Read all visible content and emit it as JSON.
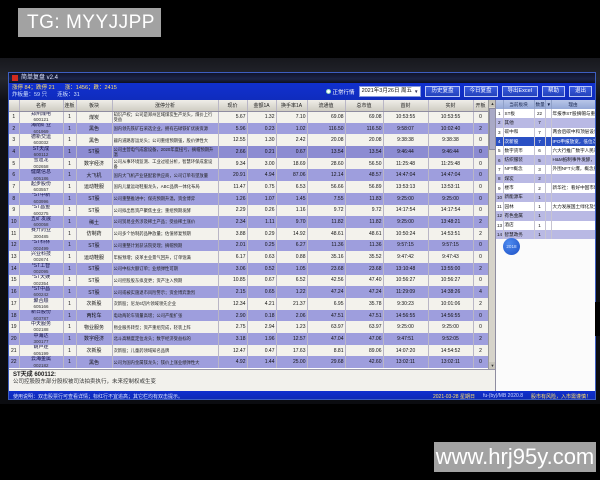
{
  "watermarks": {
    "top": "TG: MYYJJPP",
    "bottom": "www.hrj95y.com"
  },
  "window": {
    "title": "简单复盘 v2.4",
    "stats": {
      "line1_left": "涨停 84；跌停 21",
      "line1_right": "涨：1456；跌：2415",
      "line2_left": "炸板量：59 只",
      "line2_right": "连板：31"
    },
    "toolbar": {
      "mode_label": "正常行情",
      "date_value": "2021年3月26日 周五",
      "dropdown_glyph": "▼",
      "buttons": [
        "历史复盘",
        "今日复盘",
        "导出Excel",
        "帮助",
        "退出"
      ]
    }
  },
  "table": {
    "columns": [
      "",
      "名称",
      "连板",
      "板块",
      "涨停分析",
      "现价",
      "金额1A",
      "换手率1A",
      "流通值",
      "总市值",
      "首封",
      "实封",
      "开板"
    ],
    "selected_row": 4,
    "rows": [
      {
        "n": "1",
        "name": "郑州煤电",
        "code": "600121",
        "lb": "1",
        "sector": "煤炭",
        "an": "知识产权；公司是郑州区域煤炭生产龙头，煤价上行受益",
        "p": "5.67",
        "a": "1.32",
        "t": "7.10",
        "f": "69.08",
        "m": "69.08",
        "s1": "10:53:55",
        "s2": "10:53:55",
        "k": "0"
      },
      {
        "n": "2",
        "name": "海南矿业",
        "code": "601969",
        "lb": "1",
        "sector": "黑色",
        "an": "国内领先铁矿石采选企业，拥有石碌铁矿优质资源",
        "p": "5.96",
        "a": "0.23",
        "t": "1.02",
        "f": "116.50",
        "m": "116.50",
        "s1": "9:58:07",
        "s2": "10:02:40",
        "k": "2"
      },
      {
        "n": "3",
        "name": "德新交运",
        "code": "603032",
        "lb": "1",
        "sector": "黑色",
        "an": "疆内道路客运龙头；公司重组预期强，股价弹性大",
        "p": "12.55",
        "a": "1.30",
        "t": "2.42",
        "f": "20.08",
        "m": "20.08",
        "s1": "9:38:38",
        "s2": "9:38:38",
        "k": "0"
      },
      {
        "n": "4",
        "name": "ST天成",
        "code": "600112",
        "lb": "1",
        "sector": "ST股",
        "an": "公司主营电气成套设备，2020年度扭亏，摘帽预期升温",
        "p": "2.66",
        "a": "0.21",
        "t": "0.67",
        "f": "13.54",
        "m": "13.54",
        "s1": "9:46:44",
        "s2": "9:46:44",
        "k": "0"
      },
      {
        "n": "5",
        "name": "雪迪龙",
        "code": "002658",
        "lb": "1",
        "sector": "数字经济",
        "an": "公司从事环境监测、工业过程分析，智慧环保成套设备",
        "p": "9.34",
        "a": "3.00",
        "t": "18.69",
        "f": "28.60",
        "m": "56.50",
        "s1": "11:25:48",
        "s2": "11:25:48",
        "k": "0"
      },
      {
        "n": "6",
        "name": "健麾信息",
        "code": "605186",
        "lb": "1",
        "sector": "大飞机",
        "an": "国内大飞机产业链配套供应商，公司订单有望放量",
        "p": "20.91",
        "a": "4.94",
        "t": "87.06",
        "f": "12.14",
        "m": "48.57",
        "s1": "14:47:04",
        "s2": "14:47:04",
        "k": "0"
      },
      {
        "n": "7",
        "name": "起步股份",
        "code": "603557",
        "lb": "1",
        "sector": "运动鞋服",
        "an": "国内儿童运动鞋服龙头，ABC品牌一体化布局",
        "p": "11.47",
        "a": "0.75",
        "t": "6.53",
        "f": "56.66",
        "m": "56.89",
        "s1": "13:53:13",
        "s2": "13:53:11",
        "k": "0"
      },
      {
        "n": "8",
        "name": "*ST中新",
        "code": "603996",
        "lb": "1",
        "sector": "ST股",
        "an": "公司重整推进中；保壳预期升温，资金博弈",
        "p": "1.26",
        "a": "1.07",
        "t": "1.45",
        "f": "7.55",
        "m": "11.83",
        "s1": "9:25:00",
        "s2": "9:25:00",
        "k": "0"
      },
      {
        "n": "9",
        "name": "*ST昌鱼",
        "code": "600275",
        "lb": "1",
        "sector": "ST股",
        "an": "公司拟出售资产聚焦主业；重组预期发酵",
        "p": "2.29",
        "a": "0.26",
        "t": "1.16",
        "f": "9.72",
        "m": "9.72",
        "s1": "14:17:54",
        "s2": "14:17:54",
        "k": "0"
      },
      {
        "n": "10",
        "name": "五矿发展",
        "code": "600058",
        "lb": "1",
        "sector": "稀土",
        "an": "公司贸易业务涉及稀土产品；受益稀土涨价",
        "p": "2.34",
        "a": "1.11",
        "t": "9.70",
        "f": "11.82",
        "m": "11.82",
        "s1": "9:25:00",
        "s2": "13:48:21",
        "k": "2"
      },
      {
        "n": "11",
        "name": "赛升药业",
        "code": "300485",
        "lb": "1",
        "sector": "仿制药",
        "an": "公司多个仿制药品种放量；估值修复预期",
        "p": "3.88",
        "a": "0.29",
        "t": "14.92",
        "f": "48.61",
        "m": "48.61",
        "s1": "10:50:24",
        "s2": "14:53:51",
        "k": "2"
      },
      {
        "n": "12",
        "name": "*ST科林",
        "code": "002499",
        "lb": "1",
        "sector": "ST股",
        "an": "公司重整计划获法院受理；摘帽预期",
        "p": "2.01",
        "a": "0.25",
        "t": "6.27",
        "f": "11.36",
        "m": "11.36",
        "s1": "9:57:15",
        "s2": "9:57:15",
        "k": "0"
      },
      {
        "n": "13",
        "name": "兴业科技",
        "code": "002674",
        "lb": "1",
        "sector": "运动鞋服",
        "an": "年报预增；皮革主业景气回升，订单饱满",
        "p": "6.17",
        "a": "0.63",
        "t": "0.88",
        "f": "35.16",
        "m": "35.52",
        "s1": "9:47:42",
        "s2": "9:47:43",
        "k": "0"
      },
      {
        "n": "14",
        "name": "*ST工智",
        "code": "002095",
        "lb": "1",
        "sector": "ST股",
        "an": "公司中标大额订单；业绩弹性可期",
        "p": "3.06",
        "a": "0.52",
        "t": "1.05",
        "f": "23.68",
        "m": "23.68",
        "s1": "13:10:48",
        "s2": "13:55:00",
        "k": "2"
      },
      {
        "n": "15",
        "name": "*ST天娱",
        "code": "002354",
        "lb": "1",
        "sector": "ST股",
        "an": "公司控股股东拟变更；资产注入预期",
        "p": "10.85",
        "a": "0.67",
        "t": "6.52",
        "f": "42.56",
        "m": "47.40",
        "s1": "10:56:27",
        "s2": "10:56:27",
        "k": "0"
      },
      {
        "n": "16",
        "name": "*ST中昌",
        "code": "600242",
        "lb": "1",
        "sector": "ST股",
        "an": "公司或被实施退市风险警示；资金博弈激烈",
        "p": "2.15",
        "a": "0.65",
        "t": "1.22",
        "f": "47.24",
        "m": "47.24",
        "s1": "11:29:09",
        "s2": "14:38:26",
        "k": "4"
      },
      {
        "n": "17",
        "name": "聚合顺",
        "code": "605166",
        "lb": "1",
        "sector": "次新股",
        "an": "次新股；尼龙6切片领域领先企业",
        "p": "12.34",
        "a": "4.21",
        "t": "21.37",
        "f": "6.95",
        "m": "35.78",
        "s1": "9:30:23",
        "s2": "10:01:06",
        "k": "2"
      },
      {
        "n": "18",
        "name": "新日股份",
        "code": "603787",
        "lb": "1",
        "sector": "两轮车",
        "an": "电动两轮车销量高增；公司产能扩张",
        "p": "2.90",
        "a": "0.18",
        "t": "2.06",
        "f": "47.51",
        "m": "47.51",
        "s1": "14:56:55",
        "s2": "14:56:55",
        "k": "0"
      },
      {
        "n": "19",
        "name": "中天服务",
        "code": "002188",
        "lb": "1",
        "sector": "物业服务",
        "an": "物业服务转型；资产重组完成，轻装上阵",
        "p": "2.75",
        "a": "2.94",
        "t": "1.23",
        "f": "63.97",
        "m": "63.97",
        "s1": "9:25:00",
        "s2": "9:25:00",
        "k": "0"
      },
      {
        "n": "20",
        "name": "中海达",
        "code": "300177",
        "lb": "1",
        "sector": "数字经济",
        "an": "北斗高精度定位龙头；数字经济受益标的",
        "p": "3.18",
        "a": "1.96",
        "t": "12.57",
        "f": "47.04",
        "m": "47.06",
        "s1": "9:47:51",
        "s2": "9:52:05",
        "k": "2"
      },
      {
        "n": "21",
        "name": "葫芦娃",
        "code": "605199",
        "lb": "1",
        "sector": "次新股",
        "an": "次新股；儿童药领域知名品牌",
        "p": "12.47",
        "a": "0.47",
        "t": "17.63",
        "f": "8.81",
        "m": "89.06",
        "s1": "14:07:20",
        "s2": "14:54:52",
        "k": "2"
      },
      {
        "n": "22",
        "name": "云海金属",
        "code": "002182",
        "lb": "1",
        "sector": "黑色",
        "an": "公司为国内金属镁龙头；镁价上涨业绩弹性大",
        "p": "4.92",
        "a": "1.44",
        "t": "25.00",
        "f": "29.68",
        "m": "42.60",
        "s1": "13:02:11",
        "s2": "13:02:11",
        "k": "0"
      }
    ]
  },
  "sector_panel": {
    "columns": [
      "当前板块",
      "数量",
      "理由"
    ],
    "sort_glyph": "▼",
    "selected_row": 4,
    "badge": "2018",
    "rows": [
      {
        "n": "1",
        "name": "ST板",
        "count": "22",
        "reason": "年报季ST股摘帽与重组预期，炒作活跃"
      },
      {
        "n": "2",
        "name": "其他",
        "count": "7",
        "reason": ""
      },
      {
        "n": "3",
        "name": "碳中和",
        "count": "7",
        "reason": "两会后碳中和顶层设计推进，板块持续活跃"
      },
      {
        "n": "4",
        "name": "次新股",
        "count": "7",
        "reason": "IPO申报放宽，低位次新股稀缺性凸显，资金抱团PO"
      },
      {
        "n": "5",
        "name": "数字货币",
        "count": "6",
        "reason": "六大行推广数字人民币试点；发改委表态"
      },
      {
        "n": "6",
        "name": "纺织服装",
        "count": "5",
        "reason": "H&M抵制事件发酵，国货受捧"
      },
      {
        "n": "7",
        "name": "NFT概念",
        "count": "3",
        "reason": "外围NFT火爆，概念股翻倍"
      },
      {
        "n": "8",
        "name": "煤炭",
        "count": "2",
        "reason": ""
      },
      {
        "n": "9",
        "name": "楼市",
        "count": "2",
        "reason": "新华社：看好中国市场中长期前景"
      },
      {
        "n": "10",
        "name": "新能源车",
        "count": "1",
        "reason": ""
      },
      {
        "n": "11",
        "name": "园林",
        "count": "1",
        "reason": "大力发展国土绿化及生态保护修复"
      },
      {
        "n": "12",
        "name": "有色金属",
        "count": "1",
        "reason": ""
      },
      {
        "n": "13",
        "name": "酒店",
        "count": "1",
        "reason": ""
      },
      {
        "n": "14",
        "name": "智慧政务",
        "count": "1",
        "reason": ""
      }
    ]
  },
  "detail": {
    "title": "ST天成 600112:",
    "text": "公司控股股东部分股权被司法拍卖执行，未来控制权或生变"
  },
  "statusbar": {
    "left": "使用说明：双击股票行可查看详情；标红行不宜追高；其它栏均有双击提示。",
    "date": "2021-03-28 星期日",
    "version": "fu-(by)/MB  2020.8",
    "warning": "股市有风险，入市需谨慎！"
  }
}
